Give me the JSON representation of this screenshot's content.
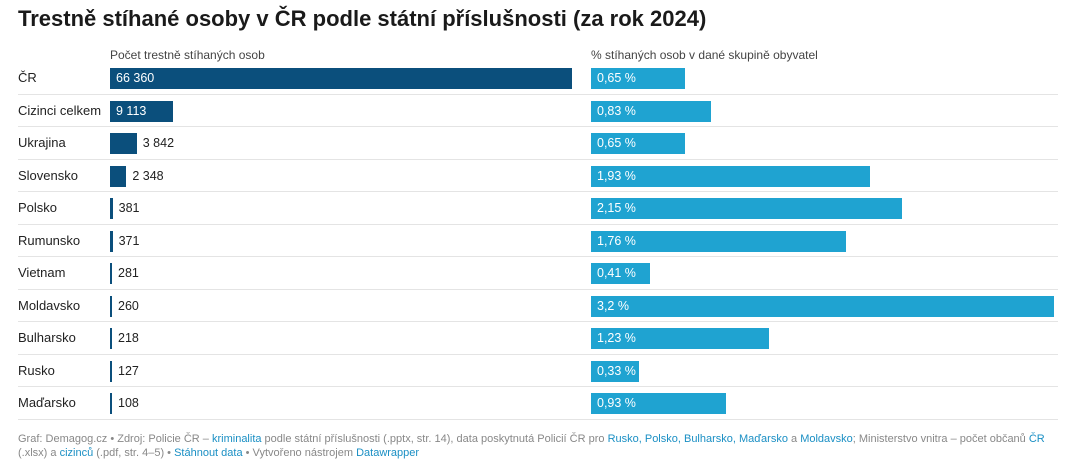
{
  "title": "Trestně stíhané osoby v ČR podle státní příslušnosti (za rok 2024)",
  "chart_data": {
    "type": "bar",
    "orientation": "horizontal",
    "categories": [
      "ČR",
      "Cizinci celkem",
      "Ukrajina",
      "Slovensko",
      "Polsko",
      "Rumunsko",
      "Vietnam",
      "Moldavsko",
      "Bulharsko",
      "Rusko",
      "Maďarsko"
    ],
    "series": [
      {
        "name": "Počet trestně stíhaných osob",
        "values": [
          66360,
          9113,
          3842,
          2348,
          381,
          371,
          281,
          260,
          218,
          127,
          108
        ],
        "labels": [
          "66 360",
          "9 113",
          "3 842",
          "2 348",
          "381",
          "371",
          "281",
          "260",
          "218",
          "127",
          "108"
        ],
        "color": "#0b4f7c"
      },
      {
        "name": "% stíhaných osob v dané skupině obyvatel",
        "values": [
          0.65,
          0.83,
          0.65,
          1.93,
          2.15,
          1.76,
          0.41,
          3.2,
          1.23,
          0.33,
          0.93
        ],
        "labels": [
          "0,65 %",
          "0,83 %",
          "0,65 %",
          "1,93 %",
          "2,15 %",
          "1,76 %",
          "0,41 %",
          "3,2 %",
          "1,23 %",
          "0,33 %",
          "0,93 %"
        ],
        "color": "#1fa3d1"
      }
    ],
    "grid": false,
    "legend": "none"
  },
  "footer": {
    "t1": "Graf: Demagog.cz • Zdroj: Policie ČR – ",
    "l1": "kriminalita",
    "t2": " podle státní příslušnosti (.pptx, str. 14), data poskytnutá Policií ČR pro ",
    "l2": "Rusko, Polsko, Bulharsko, Maďarsko",
    "t3": " a ",
    "l3": "Moldavsko",
    "t4": "; Ministerstvo vnitra – počet občanů ",
    "l4": "ČR",
    "t5": " (.xlsx) a ",
    "l5": "cizinců",
    "t6": " (.pdf, str. 4–5) • ",
    "l6": "Stáhnout data",
    "t7": " • Vytvořeno nástrojem ",
    "l7": "Datawrapper"
  }
}
